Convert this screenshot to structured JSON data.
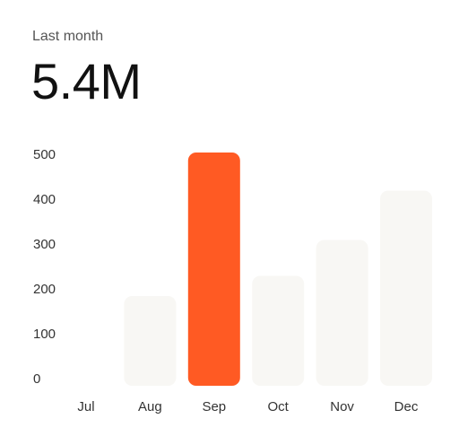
{
  "header": {
    "label": "Last month",
    "value": "5.4M"
  },
  "colors": {
    "highlight": "#FF5A23",
    "bar": "#F8F7F4",
    "tick_text": "#333333"
  },
  "chart_data": {
    "type": "bar",
    "categories": [
      "Jul",
      "Aug",
      "Sep",
      "Oct",
      "Nov",
      "Dec"
    ],
    "values": [
      0,
      200,
      520,
      245,
      325,
      435
    ],
    "highlighted_category": "Sep",
    "yticks": [
      0,
      100,
      200,
      300,
      400,
      500
    ],
    "ylim": [
      0,
      500
    ],
    "grid": false,
    "title": "",
    "xlabel": "",
    "ylabel": ""
  }
}
